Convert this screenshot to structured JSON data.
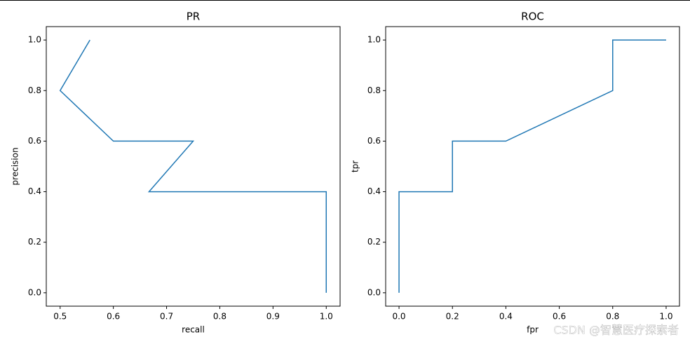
{
  "chart_data": [
    {
      "type": "line",
      "title": "PR",
      "x_label": "recall",
      "y_label": "precision",
      "series": [
        {
          "color": "#1f77b4",
          "x": [
            0.556,
            0.5,
            0.6,
            0.75,
            0.667,
            1.0,
            1.0
          ],
          "values": [
            1.0,
            0.8,
            0.6,
            0.6,
            0.4,
            0.4,
            0.0
          ]
        }
      ],
      "xlim": [
        0.474,
        1.026
      ],
      "ylim": [
        -0.053,
        1.053
      ],
      "xticks": [
        0.5,
        0.6,
        0.7,
        0.8,
        0.9,
        {
          "value": 1,
          "label": "1.0"
        }
      ],
      "yticks": [
        {
          "value": 0,
          "label": "0.0"
        },
        0.2,
        0.4,
        0.6,
        0.8,
        {
          "value": 1,
          "label": "1.0"
        }
      ]
    },
    {
      "type": "line",
      "title": "ROC",
      "x_label": "fpr",
      "y_label": "tpr",
      "series": [
        {
          "color": "#1f77b4",
          "x": [
            0,
            0,
            0.2,
            0.2,
            0.4,
            0.8,
            0.8,
            1.0
          ],
          "values": [
            0,
            0.4,
            0.4,
            0.6,
            0.6,
            0.8,
            1.0,
            1.0
          ]
        }
      ],
      "xlim": [
        -0.05,
        1.05
      ],
      "ylim": [
        -0.053,
        1.053
      ],
      "xticks": [
        {
          "value": 0,
          "label": "0.0"
        },
        0.2,
        0.4,
        0.6,
        0.8,
        {
          "value": 1,
          "label": "1.0"
        }
      ],
      "yticks": [
        {
          "value": 0,
          "label": "0.0"
        },
        0.2,
        0.4,
        0.6,
        0.8,
        {
          "value": 1,
          "label": "1.0"
        }
      ]
    }
  ],
  "watermark": "CSDN @智慧医疗探索者"
}
